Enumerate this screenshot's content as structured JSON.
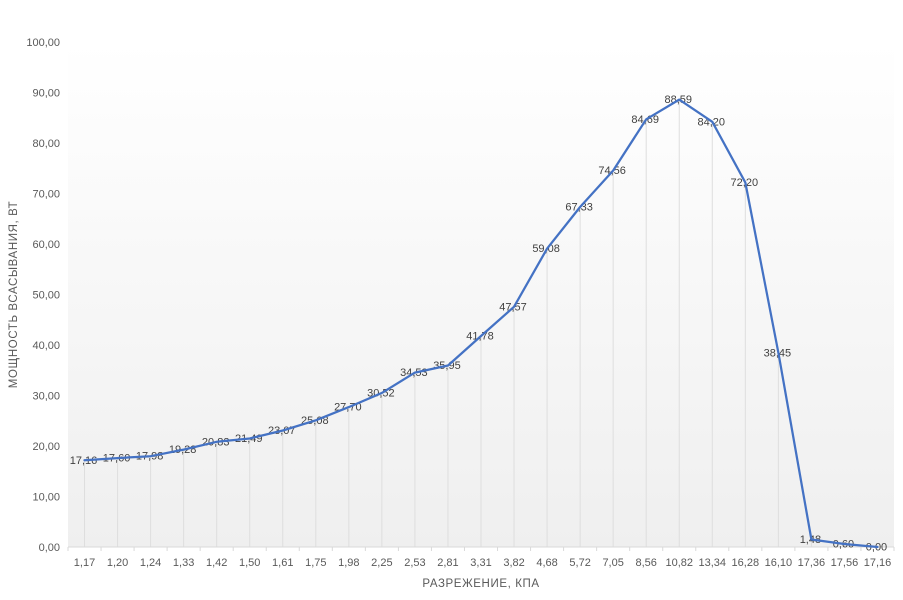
{
  "chart_data": {
    "type": "line",
    "title": "",
    "xlabel": "РАЗРЕЖЕНИЕ, КПА",
    "ylabel": "МОЩНОСТЬ ВСАСЫВАНИЯ, ВТ",
    "categories": [
      "1,17",
      "1,20",
      "1,24",
      "1,33",
      "1,42",
      "1,50",
      "1,61",
      "1,75",
      "1,98",
      "2,25",
      "2,53",
      "2,81",
      "3,31",
      "3,82",
      "4,68",
      "5,72",
      "7,05",
      "8,56",
      "10,82",
      "13,34",
      "16,28",
      "16,10",
      "17,36",
      "17,56",
      "17,16"
    ],
    "values": [
      17.16,
      17.6,
      17.98,
      19.28,
      20.83,
      21.49,
      23.07,
      25.08,
      27.7,
      30.52,
      34.53,
      35.95,
      41.78,
      47.57,
      59.08,
      67.33,
      74.56,
      84.69,
      88.59,
      84.2,
      72.2,
      38.45,
      1.48,
      0.6,
      0.0
    ],
    "data_labels": [
      "17,16",
      "17,60",
      "17,98",
      "19,28",
      "20,83",
      "21,49",
      "23,07",
      "25,08",
      "27,70",
      "30,52",
      "34,53",
      "35,95",
      "41,78",
      "47,57",
      "59,08",
      "67,33",
      "74,56",
      "84,69",
      "88,59",
      "84,20",
      "72,20",
      "38,45",
      "1,48",
      "0,60",
      "0,00"
    ],
    "y_tick_labels": [
      "0,00",
      "10,00",
      "20,00",
      "30,00",
      "40,00",
      "50,00",
      "60,00",
      "70,00",
      "80,00",
      "90,00",
      "100,00"
    ],
    "y_tick_values": [
      0,
      10,
      20,
      30,
      40,
      50,
      60,
      70,
      80,
      90,
      100
    ],
    "ylim": [
      0,
      100
    ],
    "legend": "none",
    "grid": "vertical-drop-lines",
    "colors": {
      "line": "#4472C4",
      "drop_line": "#DEDEDE",
      "axis_line": "#D9D9D9",
      "tick_text": "#595959",
      "data_label_text": "#404040",
      "plot_bg_top": "#FFFFFF",
      "plot_bg_bottom": "#EFEFEF"
    }
  }
}
